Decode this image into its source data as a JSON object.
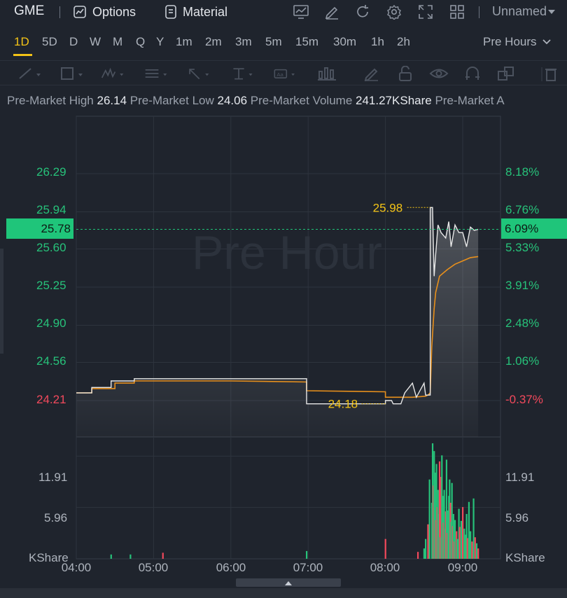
{
  "toolbar": {
    "ticker": "GME",
    "options_label": "Options",
    "material_label": "Material",
    "workspace_label": "Unnamed"
  },
  "timeframes": [
    "1D",
    "5D",
    "D",
    "W",
    "M",
    "Q",
    "Y",
    "1m",
    "2m",
    "3m",
    "5m",
    "15m",
    "30m",
    "1h",
    "2h"
  ],
  "active_timeframe": "1D",
  "session_select": "Pre Hours",
  "stats": {
    "high_label": "Pre-Market High",
    "high": "26.14",
    "low_label": "Pre-Market Low",
    "low": "24.06",
    "volume_label": "Pre-Market Volume",
    "volume": "241.27KShare",
    "extra_label": "Pre-Market A"
  },
  "watermark": "Pre Hour",
  "current_price": "25.78",
  "current_pct": "6.09%",
  "marker_high": "25.98",
  "marker_low": "24.18",
  "colors": {
    "up": "#27c27a",
    "down": "#f2495c",
    "accent": "#f3c316",
    "avg_line": "#e8901c",
    "price_line": "#e8e8e8"
  },
  "chart_data": {
    "type": "line",
    "price_ticks": [
      "26.29",
      "25.94",
      "25.60",
      "25.25",
      "24.90",
      "24.56",
      "24.21"
    ],
    "pct_ticks": [
      "8.18%",
      "6.76%",
      "5.33%",
      "3.91%",
      "2.48%",
      "1.06%",
      "-0.37%"
    ],
    "volume_ticks": [
      "11.91",
      "5.96"
    ],
    "volume_unit": "KShare",
    "x_ticks": [
      "04:00",
      "05:00",
      "06:00",
      "07:00",
      "08:00",
      "09:00"
    ],
    "price_ylim": [
      24.21,
      26.29
    ],
    "price_series": {
      "t": [
        4.0,
        4.2,
        4.2,
        4.45,
        4.45,
        4.75,
        4.75,
        6.98,
        6.98,
        8.0,
        8.0,
        8.08,
        8.1,
        8.2,
        8.25,
        8.35,
        8.4,
        8.5,
        8.52,
        8.58,
        8.58,
        8.61,
        8.63,
        8.65,
        8.68,
        8.72,
        8.78,
        8.82,
        8.85,
        8.9,
        8.95,
        9.0,
        9.05,
        9.1,
        9.15,
        9.2
      ],
      "v": [
        24.28,
        24.28,
        24.33,
        24.33,
        24.39,
        24.39,
        24.41,
        24.41,
        24.18,
        24.18,
        24.21,
        24.21,
        24.18,
        24.18,
        24.28,
        24.37,
        24.24,
        24.37,
        24.26,
        24.26,
        25.98,
        25.98,
        25.35,
        25.55,
        25.82,
        25.75,
        25.7,
        25.85,
        25.62,
        25.82,
        25.75,
        25.75,
        25.62,
        25.8,
        25.77,
        25.78
      ]
    },
    "avg_series": {
      "t": [
        4.0,
        4.2,
        4.2,
        4.5,
        4.5,
        4.75,
        4.75,
        6.0,
        6.98,
        6.98,
        8.0,
        8.0,
        8.35,
        8.52,
        8.55,
        8.58,
        8.6,
        8.63,
        8.65,
        8.7,
        8.8,
        8.9,
        9.0,
        9.1,
        9.2
      ],
      "v": [
        24.28,
        24.28,
        24.32,
        24.32,
        24.37,
        24.37,
        24.39,
        24.39,
        24.38,
        24.3,
        24.29,
        24.24,
        24.24,
        24.25,
        24.26,
        24.28,
        24.7,
        25.05,
        25.2,
        25.35,
        25.41,
        25.46,
        25.49,
        25.52,
        25.53
      ]
    },
    "volume_ylim": [
      0,
      13
    ],
    "volume_series": {
      "t": [
        4.45,
        4.7,
        5.12,
        6.98,
        8.0,
        8.42,
        8.5,
        8.52,
        8.55,
        8.57,
        8.6,
        8.61,
        8.62,
        8.63,
        8.64,
        8.65,
        8.66,
        8.67,
        8.68,
        8.69,
        8.7,
        8.71,
        8.72,
        8.73,
        8.74,
        8.75,
        8.76,
        8.77,
        8.78,
        8.79,
        8.8,
        8.81,
        8.82,
        8.83,
        8.84,
        8.85,
        8.86,
        8.87,
        8.88,
        8.89,
        8.9,
        8.92,
        8.93,
        8.95,
        8.96,
        8.98,
        9.0,
        9.02,
        9.03,
        9.05,
        9.06,
        9.08,
        9.1,
        9.12,
        9.14,
        9.16,
        9.18,
        9.2
      ],
      "v": [
        0.5,
        0.5,
        0.7,
        0.9,
        2.3,
        0.8,
        1.2,
        2.3,
        4.0,
        9.2,
        6.5,
        13.4,
        8.5,
        12.5,
        10.0,
        4.5,
        11.0,
        6.0,
        8.0,
        5.2,
        11.3,
        2.5,
        9.5,
        12.0,
        7.3,
        4.2,
        8.0,
        3.5,
        5.5,
        11.5,
        3.0,
        5.6,
        7.3,
        9.2,
        6.5,
        4.3,
        8.8,
        3.8,
        5.2,
        2.0,
        4.5,
        3.2,
        2.3,
        5.8,
        3.7,
        4.4,
        6.0,
        3.5,
        2.8,
        5.2,
        2.4,
        6.6,
        3.2,
        2.0,
        7.0,
        2.5,
        1.8,
        1.2
      ],
      "up": [
        true,
        true,
        false,
        true,
        false,
        false,
        true,
        true,
        false,
        true,
        true,
        true,
        false,
        true,
        true,
        false,
        true,
        false,
        true,
        true,
        false,
        true,
        false,
        true,
        true,
        false,
        true,
        true,
        false,
        true,
        false,
        true,
        true,
        true,
        false,
        true,
        true,
        false,
        true,
        false,
        true,
        false,
        true,
        true,
        false,
        true,
        false,
        true,
        true,
        true,
        false,
        true,
        true,
        false,
        true,
        false,
        true,
        false
      ]
    }
  }
}
